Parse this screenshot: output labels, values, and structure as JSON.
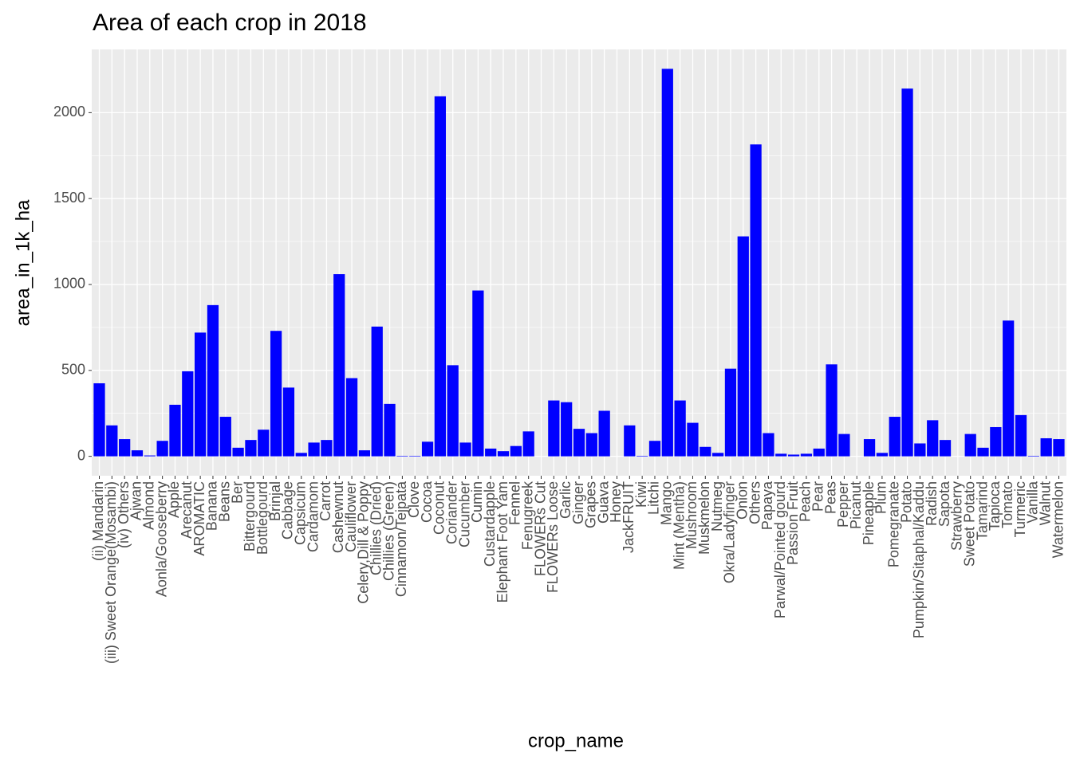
{
  "chart_data": {
    "type": "bar",
    "title": "Area of each crop in 2018",
    "x_label": "crop_name",
    "y_label": "area_in_1k_ha",
    "categories": [
      "(ii) Mandarin",
      "(iii) Sweet Orange(Mosambi)",
      "(iv) Others",
      "Ajwan",
      "Almond",
      "Aonla/Gooseberry",
      "Apple",
      "Arecanut",
      "AROMATIC",
      "Banana",
      "Beans",
      "Ber",
      "Bittergourd",
      "Bottlegourd",
      "Brinjal",
      "Cabbage",
      "Capsicum",
      "Cardamom",
      "Carrot",
      "Cashewnut",
      "Cauliflower",
      "Celery,Dill & Poppy",
      "Chillies (Dried)",
      "Chillies (Green)",
      "Cinnamon/Tejpata",
      "Clove",
      "Cocoa",
      "Coconut",
      "Coriander",
      "Cucumber",
      "Cumin",
      "Custardapple",
      "Elephant Foot Yam",
      "Fennel",
      "Fenugreek",
      "FLOWERs Cut",
      "FLOWERs Loose",
      "Garlic",
      "Ginger",
      "Grapes",
      "Guava",
      "Honey",
      "JackFRUIT",
      "Kiwi",
      "Litchi",
      "Mango",
      "Mint (Mentha)",
      "Mushroom",
      "Muskmelon",
      "Nutmeg",
      "Okra/Ladyfinger",
      "Onion",
      "Others",
      "Papaya",
      "Parwal/Pointed gourd",
      "Passion Fruit",
      "Peach",
      "Pear",
      "Peas",
      "Pepper",
      "Picanut",
      "Pineapple",
      "Plum",
      "Pomegranate",
      "Potato",
      "Pumpkin/Sitaphal/Kaddu",
      "Radish",
      "Sapota",
      "Strawberry",
      "Sweet Potato",
      "Tamarind",
      "Tapioca",
      "Tomato",
      "Turmeric",
      "Vanilla",
      "Walnut",
      "Watermelon"
    ],
    "values": [
      425,
      180,
      100,
      35,
      5,
      90,
      300,
      495,
      720,
      880,
      230,
      50,
      95,
      155,
      730,
      400,
      20,
      80,
      95,
      1060,
      455,
      35,
      755,
      305,
      3,
      3,
      85,
      2095,
      530,
      80,
      965,
      45,
      30,
      60,
      145,
      0,
      325,
      315,
      160,
      135,
      265,
      0,
      180,
      3,
      90,
      2255,
      325,
      195,
      55,
      20,
      510,
      1280,
      1815,
      135,
      15,
      10,
      15,
      45,
      535,
      130,
      0,
      100,
      20,
      230,
      2140,
      75,
      210,
      95,
      0,
      130,
      50,
      170,
      790,
      240,
      3,
      105,
      100
    ],
    "color": "#0000ff",
    "ylim": [
      -113,
      2368
    ],
    "yticks": [
      0,
      500,
      1000,
      1500,
      2000
    ],
    "grid": true
  }
}
